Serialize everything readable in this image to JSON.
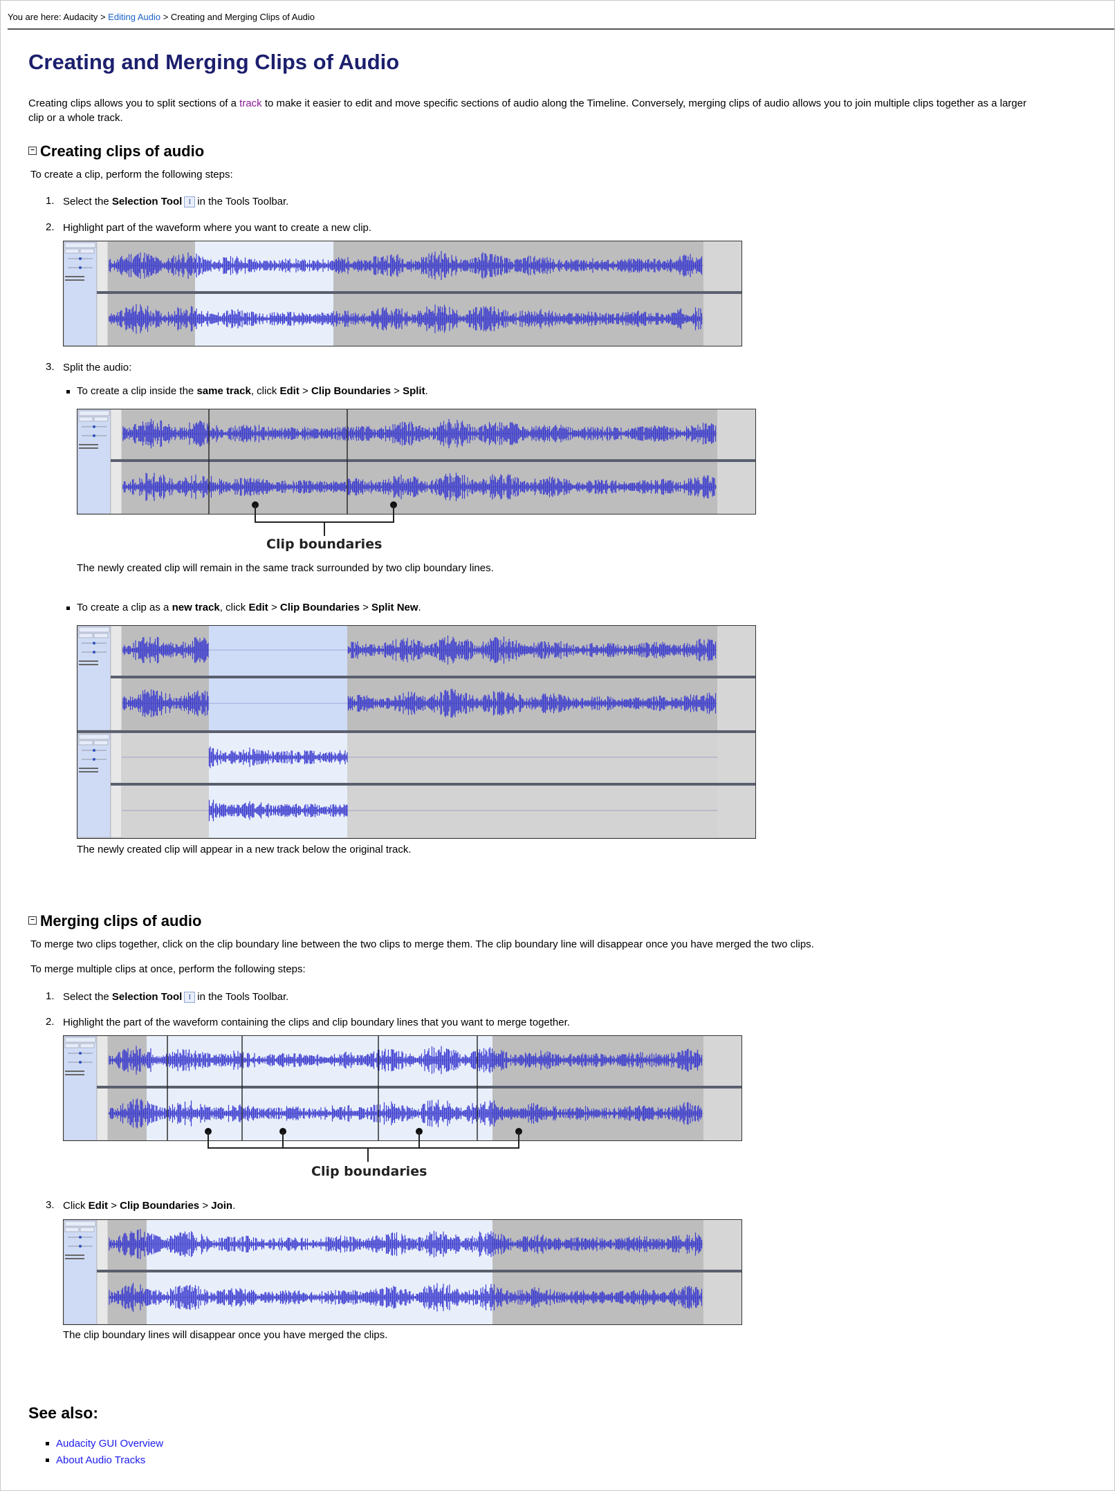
{
  "breadcrumb": {
    "prefix": "You are here: Audacity >",
    "link": "Editing Audio",
    "suffix": "> Creating and Merging Clips of Audio"
  },
  "title": "Creating and Merging Clips of Audio",
  "intro": {
    "before": "Creating clips allows you to split sections of a",
    "link": "track",
    "after": "to make it easier to edit and move specific sections of audio along the Timeline. Conversely, merging clips of audio allows you to join multiple clips together as a larger",
    "line2": "clip or a whole track."
  },
  "creating": {
    "heading": "Creating clips of audio",
    "lead": "To create a clip, perform the following steps:",
    "step1": {
      "num": "1.",
      "before": "Select the",
      "bold": "Selection Tool",
      "after": "in the Tools Toolbar."
    },
    "step2": {
      "num": "2.",
      "text": "Highlight part of the waveform where you want to create a new clip."
    },
    "step3": {
      "num": "3.",
      "text": "Split the audio:"
    },
    "bulletA": {
      "before": "To create a clip inside the",
      "b1": "same track",
      "mid": ", click",
      "b2": "Edit",
      "gt1": ">",
      "b3": "Clip Boundaries",
      "gt2": ">",
      "b4": "Split",
      "end": "."
    },
    "boundaries_label": "Clip boundaries",
    "noteA": "The newly created clip will remain in the same track surrounded by two clip boundary lines.",
    "bulletB": {
      "before": "To create a clip as a",
      "b1": "new track",
      "mid": ", click",
      "b2": "Edit",
      "gt1": ">",
      "b3": "Clip Boundaries",
      "gt2": ">",
      "b4": "Split New",
      "end": "."
    },
    "noteB": "The newly created clip will appear in a new track below the original track."
  },
  "merging": {
    "heading": "Merging clips of audio",
    "lead1": "To merge two clips together, click on the clip boundary line between the two clips to merge them. The clip boundary line will disappear once you have merged the two clips.",
    "lead2": "To merge multiple clips at once, perform the following steps:",
    "step1": {
      "num": "1.",
      "before": "Select the",
      "bold": "Selection Tool",
      "after": "in the Tools Toolbar."
    },
    "step2": {
      "num": "2.",
      "text": "Highlight the part of the waveform containing the clips and clip boundary lines that you want to merge together."
    },
    "boundaries_label": "Clip boundaries",
    "step3": {
      "num": "3.",
      "before": "Click",
      "b1": "Edit",
      "gt1": ">",
      "b2": "Clip Boundaries",
      "gt2": ">",
      "b3": "Join",
      "end": "."
    },
    "note": "The clip boundary lines will disappear once you have merged the clips."
  },
  "see_also": {
    "heading": "See also:",
    "links": [
      "Audacity GUI Overview",
      "About Audio Tracks"
    ]
  },
  "icons": {
    "selection_tool": "I",
    "toggle": "collapse-icon"
  },
  "colors": {
    "title": "#1c1f6d",
    "wave": "#3b3bd0",
    "selected": "#e8effa",
    "link": "#1a1aee"
  }
}
